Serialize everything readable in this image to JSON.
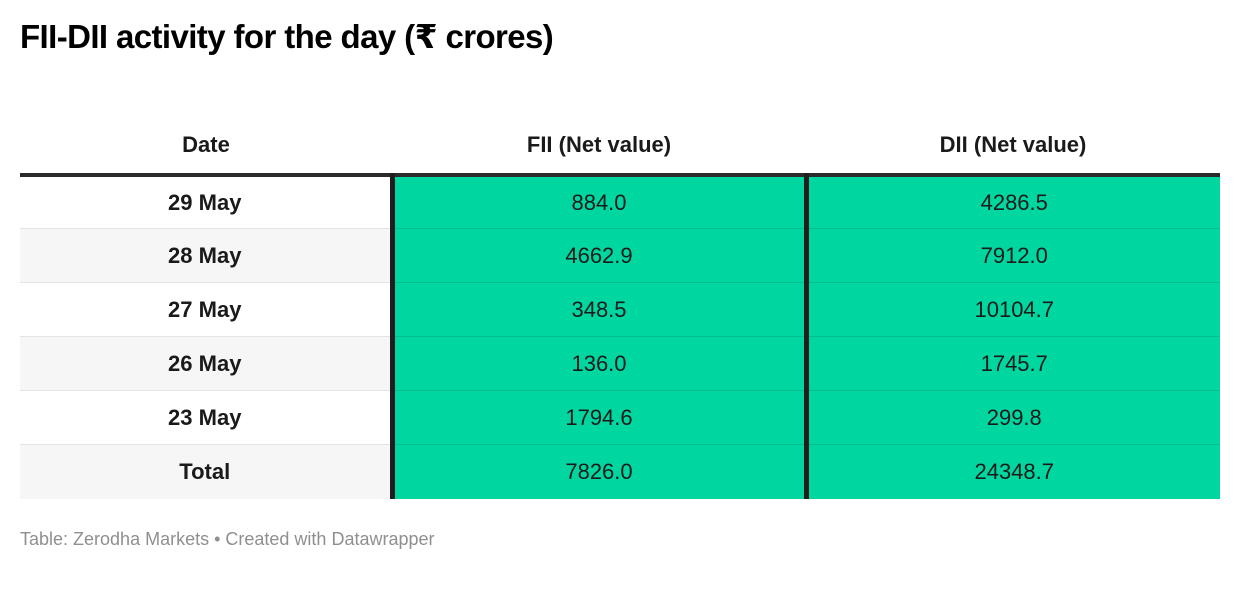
{
  "chart_data": {
    "type": "table",
    "title": "FII-DII activity for the day (₹ crores)",
    "columns": [
      "Date",
      "FII (Net value)",
      "DII (Net value)"
    ],
    "rows": [
      {
        "date": "29 May",
        "fii": "884.0",
        "dii": "4286.5"
      },
      {
        "date": "28 May",
        "fii": "4662.9",
        "dii": "7912.0"
      },
      {
        "date": "27 May",
        "fii": "348.5",
        "dii": "10104.7"
      },
      {
        "date": "26 May",
        "fii": "136.0",
        "dii": "1745.7"
      },
      {
        "date": "23 May",
        "fii": "1794.6",
        "dii": "299.8"
      },
      {
        "date": "Total",
        "fii": "7826.0",
        "dii": "24348.7"
      }
    ],
    "footer": "Table: Zerodha Markets • Created with Datawrapper",
    "layout_hints": {
      "zebra_striping": true,
      "value_columns_highlighted": true,
      "alignment": "center"
    }
  },
  "colors": {
    "cell_green": "#00d7a0",
    "green_row_divider": "#00be8e",
    "dark_column_divider": "#1e1e1e",
    "header_rule": "#2b2b2b",
    "zebra_gray": "#f6f6f6",
    "footer_gray": "#8f8f8f",
    "text_dark": "#1a1a1a"
  }
}
